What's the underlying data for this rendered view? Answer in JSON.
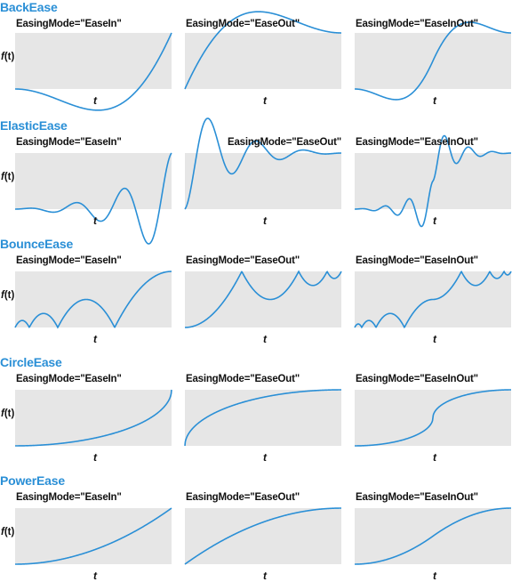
{
  "colors": {
    "title": "#2a8fd6",
    "curve": "#2a8fd6",
    "panel_bg": "#e6e6e6"
  },
  "y_label_prefix": "f",
  "y_label_suffix": "(t)",
  "x_label": "t",
  "mode_labels": [
    "EasingMode=\"EaseIn\"",
    "EasingMode=\"EaseOut\"",
    "EasingMode=\"EaseInOut\""
  ],
  "modes": [
    "EaseIn",
    "EaseOut",
    "EaseInOut"
  ],
  "rows": [
    {
      "title": "BackEase",
      "function": "back",
      "amplitude": 1
    },
    {
      "title": "ElasticEase",
      "function": "elastic",
      "oscillations": 3,
      "springiness": 3
    },
    {
      "title": "BounceEase",
      "function": "bounce",
      "bounces": 3,
      "bounciness": 2
    },
    {
      "title": "CircleEase",
      "function": "circle"
    },
    {
      "title": "PowerEase",
      "function": "power",
      "power": 2
    }
  ]
}
